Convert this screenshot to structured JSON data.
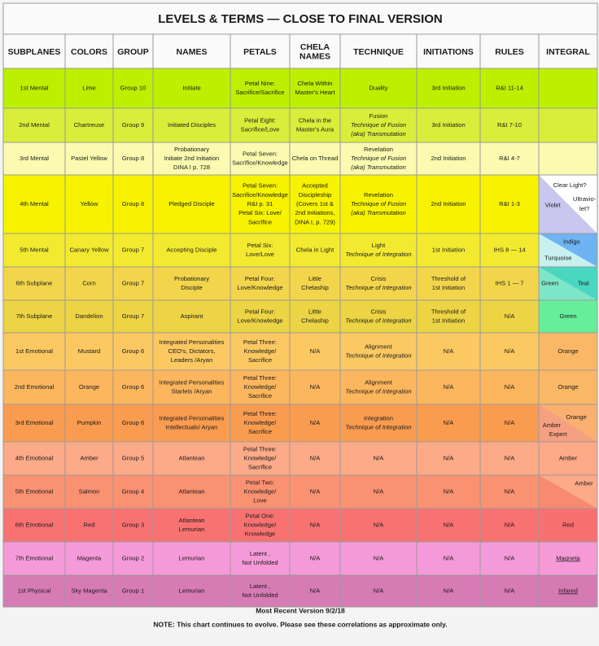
{
  "header": {
    "title": "LEVELS & TERMS — CLOSE TO FINAL VERSION"
  },
  "table": {
    "headers": [
      "SUBPLANES",
      "COLORS",
      "GROUP",
      "NAMES",
      "PETALS",
      [
        "CHELA",
        "NAMES"
      ],
      "TECHNIQUE",
      "INITIATIONS",
      "RULES",
      "INTEGRAL"
    ],
    "rows": [
      {
        "subplane": "1st Mental",
        "color": "Lime",
        "group": "Group 10",
        "names": [
          "Initiate"
        ],
        "petals": [
          "Petal Nine:",
          "Sacrifice/Sacrifice"
        ],
        "chela": [
          "Chela Within",
          "Master's Heart"
        ],
        "technique": {
          "name": "Duality",
          "method": []
        },
        "initiations": [
          "3rd Initiation"
        ],
        "rules": "R&I  11-14",
        "integral": []
      },
      {
        "subplane": "2nd Mental",
        "color": "Chartreuse",
        "group": "Group 9",
        "names": [
          "Initiated Disciples"
        ],
        "petals": [
          "Petal Eight:",
          "Sacrifice/Love"
        ],
        "chela": [
          "Chela in the",
          "Master's Aura"
        ],
        "technique": {
          "name": "Fusion",
          "method": [
            "Technique of Fusion",
            "(aka) Transmutation"
          ]
        },
        "initiations": [
          "3rd Initiation"
        ],
        "rules": "R&I  7-10",
        "integral": []
      },
      {
        "subplane": "3rd Mental",
        "color": "Pastel Yellow",
        "group": "Group 8",
        "names": [
          "Probationary",
          "Initiate 2nd Initiation",
          "DINA I p. 728"
        ],
        "petals": [
          "Petal Seven:",
          "Sacrifice/Knowledge"
        ],
        "chela": [
          "Chela on Thread"
        ],
        "technique": {
          "name": "Revelation",
          "method": [
            "Technique of Fusion",
            "(aka) Transmutation"
          ]
        },
        "initiations": [
          "2nd Initiation"
        ],
        "rules": "R&I  4-7",
        "integral": []
      },
      {
        "subplane": "4th Mental",
        "color": "Yellow",
        "group": "Group 8",
        "names": [
          "Pledged Disciple"
        ],
        "petals": [
          "Petal Seven:",
          "Sacrifice/Knowledge",
          "R&I p. 31",
          "Petal Six: Love/",
          "Sacrifice"
        ],
        "chela": [
          "Accepted",
          "Discipleship",
          "(Covers 1st &",
          "2nd Initiations,",
          "DINA I, p. 729)"
        ],
        "technique": {
          "name": "Revelation",
          "method": [
            "Technique of Fusion",
            "(aka) Transmutation"
          ]
        },
        "initiations": [
          "2nd Initiation"
        ],
        "rules": "R&I  1-3",
        "integral": [
          "Clear Light?",
          "Ultravio-",
          "let?",
          "Violet"
        ]
      },
      {
        "subplane": "5th Mental",
        "color": "Canary Yellow",
        "group": "Group 7",
        "names": [
          "Accepting  Disciple"
        ],
        "petals": [
          "Petal Six:",
          "Love/Love"
        ],
        "chela": [
          "Chela in  Light"
        ],
        "technique": {
          "name": "Light",
          "method": [
            "Technique of Integration"
          ]
        },
        "initiations": [
          "1st Initiation"
        ],
        "rules": "IHS  8 — 14",
        "integral": [
          "Indigo",
          "Turquoise"
        ]
      },
      {
        "subplane": "6th Subplane",
        "color": "Corn",
        "group": "Group 7",
        "names": [
          "Probationary",
          "Disciple"
        ],
        "petals": [
          "Petal Four:",
          "Love/Knowledge"
        ],
        "chela": [
          "Little",
          "Chelaship"
        ],
        "technique": {
          "name": "Crisis",
          "method": [
            "Technique of Integration"
          ]
        },
        "initiations": [
          "Threshold of",
          "1st Initiation"
        ],
        "rules": "IHS  1 — 7",
        "integral": [
          "Green",
          "Teal"
        ]
      },
      {
        "subplane": "7th Subplane",
        "color": "Dandelion",
        "group": "Group 7",
        "names": [
          "Aspirant"
        ],
        "petals": [
          "Petal Four:",
          "Love/Knowledge"
        ],
        "chela": [
          "Little",
          "Chelaship"
        ],
        "technique": {
          "name": "Crisis",
          "method": [
            "Technique of Integration"
          ]
        },
        "initiations": [
          "Threshold of",
          "1st Initiation"
        ],
        "rules": "N/A",
        "integral": [
          "Green"
        ]
      },
      {
        "subplane": "1st Emotional",
        "color": "Mustard",
        "group": "Group 6",
        "names": [
          "Integrated Personalities",
          "CEO's, Dictators,",
          "Leaders /Aryan"
        ],
        "petals": [
          "Petal Three:",
          "Knowledge/",
          "Sacrifice"
        ],
        "chela": [
          "N/A"
        ],
        "technique": {
          "name": "Alignment",
          "method": [
            "Technique of Integration"
          ]
        },
        "initiations": [
          "N/A"
        ],
        "rules": "N/A",
        "integral": [
          "Orange"
        ]
      },
      {
        "subplane": "2nd Emotional",
        "color": "Orange",
        "group": "Group 6",
        "names": [
          "Integrated Personalities",
          "Starlets /Aryan"
        ],
        "petals": [
          "Petal Three:",
          "Knowledge/",
          "Sacrifice"
        ],
        "chela": [
          "N/A"
        ],
        "technique": {
          "name": "Alignment",
          "method": [
            "Technique of Integration"
          ]
        },
        "initiations": [
          "N/A"
        ],
        "rules": "N/A",
        "integral": [
          "Orange"
        ]
      },
      {
        "subplane": "3rd Emotional",
        "color": "Pumpkin",
        "group": "Group 6",
        "names": [
          "Integrated Personalities",
          "Intellectuals/ Aryan"
        ],
        "petals": [
          "Petal Three:",
          "Knowledge/",
          "Sacrifice"
        ],
        "chela": [
          "N/A"
        ],
        "technique": {
          "name": "Integration",
          "method": [
            "Technique of Integration"
          ]
        },
        "initiations": [
          "N/A"
        ],
        "rules": "N/A",
        "integral": [
          "Orange",
          "Amber",
          "Expert"
        ]
      },
      {
        "subplane": "4th Emotional",
        "color": "Amber",
        "group": "Group 5",
        "names": [
          "Atlantean"
        ],
        "petals": [
          "Petal Three:",
          "Knowledge/",
          "Sacrifice"
        ],
        "chela": [
          "N/A"
        ],
        "technique": {
          "name": "N/A",
          "method": []
        },
        "initiations": [
          "N/A"
        ],
        "rules": "N/A",
        "integral": [
          "Amber"
        ]
      },
      {
        "subplane": "5th Emotional",
        "color": "Salmon",
        "group": "Group 4",
        "names": [
          "Atlantean"
        ],
        "petals": [
          "Petal Two:",
          "Knowledge/",
          "Love"
        ],
        "chela": [
          "N/A"
        ],
        "technique": {
          "name": "N/A",
          "method": []
        },
        "initiations": [
          "N/A"
        ],
        "rules": "N/A",
        "integral": [
          "Amber"
        ]
      },
      {
        "subplane": "6th Emotional",
        "color": "Red",
        "group": "Group 3",
        "names": [
          "Atlantean",
          "Lemurian"
        ],
        "petals": [
          "Petal One:",
          "Knowledge/",
          "Knowledge"
        ],
        "chela": [
          "N/A"
        ],
        "technique": {
          "name": "N/A",
          "method": []
        },
        "initiations": [
          "N/A"
        ],
        "rules": "N/A",
        "integral": [
          "Red"
        ]
      },
      {
        "subplane": "7th Emotional",
        "color": "Magenta",
        "group": "Group 2",
        "names": [
          "Lemurian"
        ],
        "petals": [
          "Latent ,",
          "Not Unfolded"
        ],
        "chela": [
          "N/A"
        ],
        "technique": {
          "name": "N/A",
          "method": []
        },
        "initiations": [
          "N/A"
        ],
        "rules": "N/A",
        "integral": [
          "Magneta"
        ]
      },
      {
        "subplane": "1st Physical",
        "color": "Sky Magenta",
        "group": "Group 1",
        "names": [
          "Lemurian"
        ],
        "petals": [
          "Latent ,",
          "Not Unfolded"
        ],
        "chela": [
          "N/A"
        ],
        "technique": {
          "name": "N/A",
          "method": []
        },
        "initiations": [
          "N/A"
        ],
        "rules": "N/A",
        "integral": [
          "Infared"
        ]
      }
    ]
  },
  "footer": {
    "version": "Most Recent Version 9/2/18",
    "note": "NOTE: This chart continues to evolve.  Please see these correlations as approximate only."
  }
}
